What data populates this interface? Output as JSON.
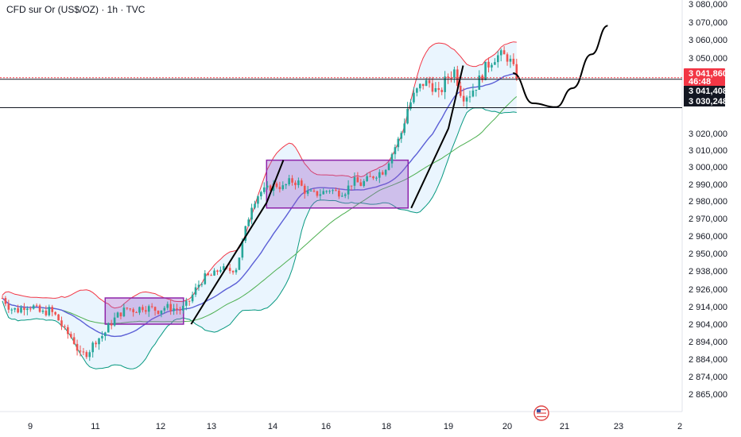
{
  "header": {
    "title": "CFD sur Or (US$/OZ) · 1h · TVC"
  },
  "colors": {
    "up": "#26a69a",
    "down": "#ef5350",
    "band_upper": "#f23645",
    "band_lower": "#089981",
    "band_fill": "#e3f2fd",
    "middle": "#5b5fd6",
    "ma_long": "#4caf50",
    "box_fill": "#9c5bc8",
    "box_stroke": "#8e24aa",
    "current_price_bg": "#f23645",
    "level_bg": "#131722"
  },
  "chart_data": {
    "type": "candlestick",
    "ylim": [
      2862000,
      3082000
    ],
    "y_ticks": [
      "3 080,000",
      "3 070,000",
      "3 060,000",
      "3 050,000",
      "3 020,000",
      "3 010,000",
      "3 000,000",
      "2 990,000",
      "2 980,000",
      "2 970,000",
      "2 960,000",
      "2 950,000",
      "2 938,000",
      "2 926,000",
      "2 914,000",
      "2 904,000",
      "2 894,000",
      "2 884,000",
      "2 874,000",
      "2 865,000"
    ],
    "y_tick_values": [
      3080000,
      3070000,
      3060000,
      3050000,
      3020000,
      3010000,
      3000000,
      2990000,
      2980000,
      2970000,
      2960000,
      2950000,
      2938000,
      2926000,
      2914000,
      2904000,
      2894000,
      2884000,
      2874000,
      2865000
    ],
    "x_ticks": [
      "9",
      "11",
      "12",
      "13",
      "14",
      "16",
      "18",
      "19",
      "20",
      "21",
      "23",
      "2"
    ],
    "price_tags": [
      {
        "label": "3 041,860",
        "value": 3041860,
        "kind": "current",
        "countdown": "46:48"
      },
      {
        "label": "3 041,408",
        "value": 3041408,
        "kind": "level"
      },
      {
        "label": "3 030,248",
        "value": 3030248,
        "kind": "level"
      }
    ],
    "anchors": [
      [
        0,
        2920
      ],
      [
        10,
        2913
      ],
      [
        20,
        2912
      ],
      [
        30,
        2915
      ],
      [
        40,
        2914
      ],
      [
        50,
        2910
      ],
      [
        60,
        2912
      ],
      [
        70,
        2908
      ],
      [
        80,
        2900
      ],
      [
        90,
        2896
      ],
      [
        100,
        2886
      ],
      [
        110,
        2888
      ],
      [
        120,
        2895
      ],
      [
        130,
        2898
      ],
      [
        140,
        2905
      ],
      [
        150,
        2910
      ],
      [
        160,
        2913
      ],
      [
        170,
        2912
      ],
      [
        180,
        2914
      ],
      [
        190,
        2913
      ],
      [
        200,
        2912
      ],
      [
        210,
        2914
      ],
      [
        220,
        2913
      ],
      [
        230,
        2912
      ],
      [
        240,
        2918
      ],
      [
        250,
        2928
      ],
      [
        260,
        2934
      ],
      [
        270,
        2935
      ],
      [
        280,
        2940
      ],
      [
        290,
        2938
      ],
      [
        300,
        2940
      ],
      [
        310,
        2960
      ],
      [
        320,
        2978
      ],
      [
        330,
        2985
      ],
      [
        340,
        2987
      ],
      [
        350,
        2990
      ],
      [
        360,
        2988
      ],
      [
        370,
        2992
      ],
      [
        380,
        2991
      ],
      [
        390,
        2985
      ],
      [
        400,
        2984
      ],
      [
        410,
        2985
      ],
      [
        420,
        2987
      ],
      [
        430,
        2985
      ],
      [
        440,
        2986
      ],
      [
        450,
        2992
      ],
      [
        460,
        2990
      ],
      [
        470,
        2993
      ],
      [
        480,
        2996
      ],
      [
        490,
        2998
      ],
      [
        500,
        3008
      ],
      [
        510,
        3018
      ],
      [
        520,
        3030
      ],
      [
        530,
        3036
      ],
      [
        540,
        3040
      ],
      [
        550,
        3040
      ],
      [
        560,
        3035
      ],
      [
        570,
        3042
      ],
      [
        580,
        3045
      ],
      [
        590,
        3035
      ],
      [
        600,
        3036
      ],
      [
        610,
        3040
      ],
      [
        620,
        3046
      ],
      [
        630,
        3050
      ],
      [
        640,
        3052
      ],
      [
        650,
        3050
      ],
      [
        660,
        3042
      ]
    ],
    "range_boxes": [
      {
        "x0": 11.15,
        "x1": 12.45,
        "y0": 2904,
        "y1": 2920
      },
      {
        "x0": 13.9,
        "x1": 18.35,
        "y0": 2976,
        "y1": 3004
      }
    ],
    "trend_lines": [
      {
        "points": [
          [
            12.6,
            2904
          ],
          [
            13.9,
            2979
          ],
          [
            14.4,
            3004
          ]
        ]
      },
      {
        "points": [
          [
            18.4,
            2976
          ],
          [
            19.0,
            3022
          ],
          [
            19.25,
            3047
          ]
        ]
      }
    ],
    "projection": {
      "points": [
        [
          20.1,
          3044
        ],
        [
          20.45,
          3032
        ],
        [
          20.85,
          3030.5
        ],
        [
          21.3,
          3038
        ],
        [
          22.0,
          3052
        ],
        [
          22.6,
          3068
        ]
      ]
    }
  }
}
